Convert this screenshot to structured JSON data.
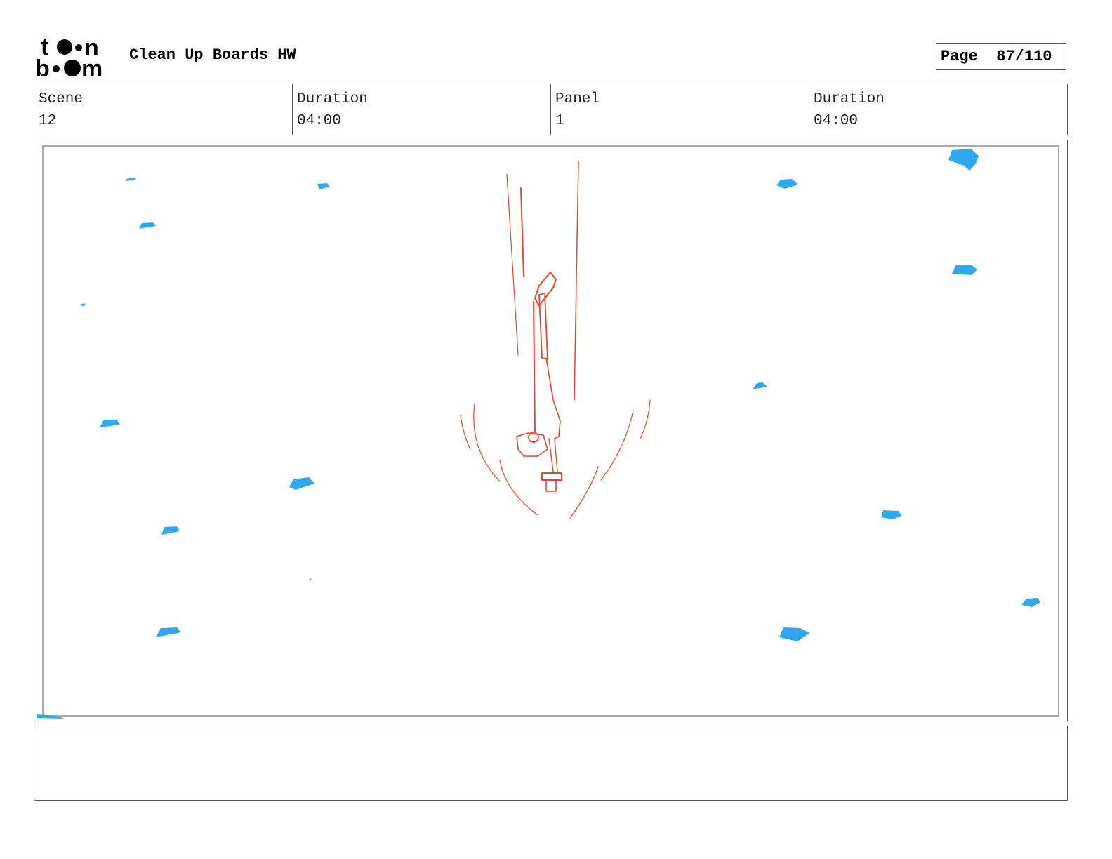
{
  "header": {
    "logo_text": "toon boom",
    "title": "Clean Up Boards HW",
    "page_label": "Page",
    "page_value": "87/110"
  },
  "info": {
    "scene_label": "Scene",
    "scene_value": "12",
    "scene_duration_label": "Duration",
    "scene_duration_value": "04:00",
    "panel_label": "Panel",
    "panel_value": "1",
    "panel_duration_label": "Duration",
    "panel_duration_value": "04:00"
  },
  "colors": {
    "sketch": "#e8452a",
    "snow": "#2ea8f0"
  },
  "notes": ""
}
